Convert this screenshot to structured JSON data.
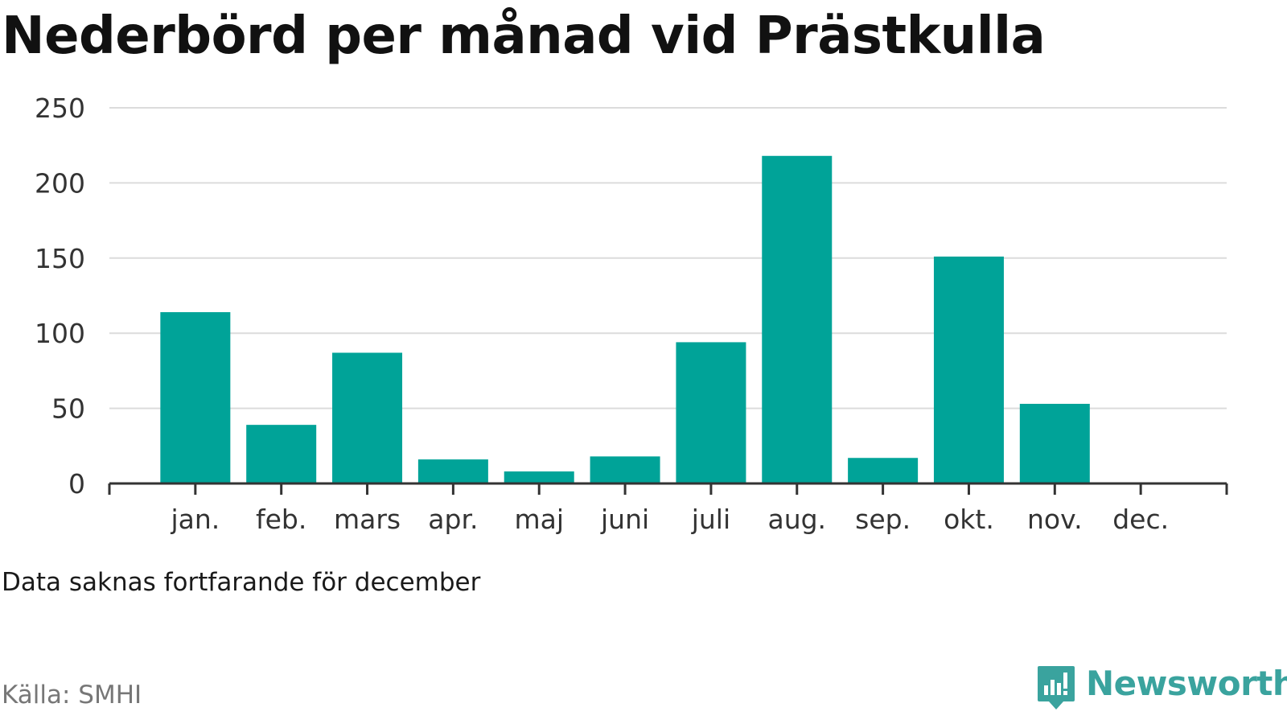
{
  "title": "Nederbörd per månad vid Prästkulla",
  "note": "Data saknas fortfarande för december",
  "source": "Källa: SMHI",
  "logo": {
    "text": "Newsworthy",
    "icon": "newsworthy-bar-chart-speech-bubble-icon",
    "color": "#3aa39e"
  },
  "chart_data": {
    "type": "bar",
    "categories": [
      "jan.",
      "feb.",
      "mars",
      "apr.",
      "maj",
      "juni",
      "juli",
      "aug.",
      "sep.",
      "okt.",
      "nov.",
      "dec."
    ],
    "values": [
      114,
      39,
      87,
      16,
      8,
      18,
      94,
      218,
      17,
      151,
      53,
      null
    ],
    "ylim": [
      0,
      250
    ],
    "yticks": [
      0,
      50,
      100,
      150,
      200,
      250
    ],
    "bar_color": "#00a398",
    "grid": true,
    "legend": "none"
  }
}
